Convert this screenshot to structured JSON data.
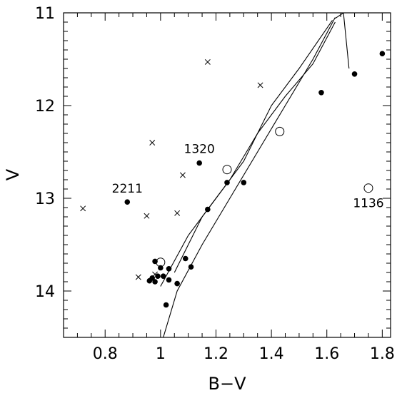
{
  "chart_data": {
    "type": "scatter",
    "title": "",
    "xlabel": "B−V",
    "ylabel": "V",
    "xlim": [
      0.65,
      1.83
    ],
    "ylim": [
      14.5,
      11.0
    ],
    "y_inverted": true,
    "grid": false,
    "x_ticks": [
      {
        "value": 0.8,
        "label": "0.8"
      },
      {
        "value": 1.0,
        "label": "1"
      },
      {
        "value": 1.2,
        "label": "1.2"
      },
      {
        "value": 1.4,
        "label": "1.4"
      },
      {
        "value": 1.6,
        "label": "1.6"
      },
      {
        "value": 1.8,
        "label": "1.8"
      }
    ],
    "y_ticks": [
      {
        "value": 11,
        "label": "11"
      },
      {
        "value": 12,
        "label": "12"
      },
      {
        "value": 13,
        "label": "13"
      },
      {
        "value": 14,
        "label": "14"
      }
    ],
    "series": [
      {
        "marker": "filled-circle",
        "points": [
          [
            0.88,
            13.04
          ],
          [
            1.14,
            12.62
          ],
          [
            1.24,
            12.83
          ],
          [
            1.3,
            12.83
          ],
          [
            1.17,
            13.12
          ],
          [
            1.58,
            11.86
          ],
          [
            1.7,
            11.66
          ],
          [
            1.8,
            11.44
          ],
          [
            0.98,
            13.68
          ],
          [
            1.0,
            13.75
          ],
          [
            0.96,
            13.89
          ],
          [
            0.98,
            13.9
          ],
          [
            0.99,
            13.84
          ],
          [
            1.01,
            13.84
          ],
          [
            1.03,
            13.76
          ],
          [
            1.03,
            13.88
          ],
          [
            1.06,
            13.92
          ],
          [
            1.09,
            13.65
          ],
          [
            1.11,
            13.74
          ],
          [
            1.02,
            14.15
          ],
          [
            0.97,
            13.86
          ]
        ]
      },
      {
        "marker": "open-circle",
        "points": [
          [
            1.43,
            12.28
          ],
          [
            1.24,
            12.69
          ],
          [
            1.75,
            12.89
          ],
          [
            1.0,
            13.69
          ]
        ]
      },
      {
        "marker": "cross",
        "points": [
          [
            1.17,
            11.53
          ],
          [
            1.36,
            11.78
          ],
          [
            0.97,
            12.4
          ],
          [
            1.08,
            12.75
          ],
          [
            0.72,
            13.11
          ],
          [
            0.95,
            13.19
          ],
          [
            1.06,
            13.16
          ],
          [
            0.92,
            13.85
          ],
          [
            0.98,
            13.82
          ]
        ]
      }
    ],
    "curves": [
      {
        "points": [
          [
            1.0,
            14.6
          ],
          [
            1.06,
            14.0
          ],
          [
            1.15,
            13.5
          ],
          [
            1.25,
            13.0
          ],
          [
            1.35,
            12.5
          ],
          [
            1.45,
            12.0
          ],
          [
            1.55,
            11.5
          ],
          [
            1.63,
            11.05
          ]
        ]
      },
      {
        "points": [
          [
            1.0,
            13.95
          ],
          [
            1.1,
            13.4
          ],
          [
            1.2,
            13.0
          ],
          [
            1.3,
            12.6
          ],
          [
            1.4,
            12.0
          ],
          [
            1.5,
            11.6
          ],
          [
            1.62,
            11.08
          ]
        ]
      },
      {
        "points": [
          [
            1.05,
            13.8
          ],
          [
            1.15,
            13.2
          ],
          [
            1.25,
            12.8
          ],
          [
            1.35,
            12.3
          ],
          [
            1.45,
            11.9
          ],
          [
            1.55,
            11.55
          ],
          [
            1.63,
            11.1
          ]
        ]
      },
      {
        "points": [
          [
            1.63,
            11.06
          ],
          [
            1.66,
            11.0
          ],
          [
            1.67,
            11.3
          ],
          [
            1.68,
            11.6
          ]
        ]
      }
    ],
    "annotations": [
      {
        "text": "2211",
        "x": 0.88,
        "y": 13.04
      },
      {
        "text": "1320",
        "x": 1.14,
        "y": 12.62
      },
      {
        "text": "1136",
        "x": 1.75,
        "y": 12.89
      }
    ]
  }
}
